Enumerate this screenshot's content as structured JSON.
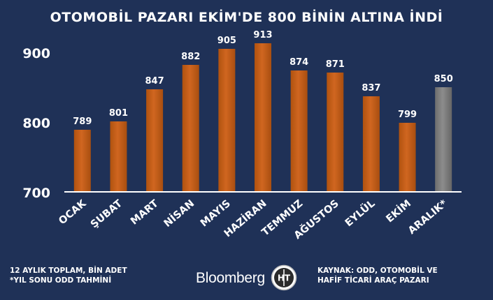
{
  "chart_data": {
    "type": "bar",
    "title": "OTOMOBİL PAZARI EKİM'DE 800 BİNİN ALTINA İNDİ",
    "categories": [
      "OCAK",
      "ŞUBAT",
      "MART",
      "NİSAN",
      "MAYIS",
      "HAZİRAN",
      "TEMMUZ",
      "AĞUSTOS",
      "EYLÜL",
      "EKİM",
      "ARALIK*"
    ],
    "values": [
      789,
      801,
      847,
      882,
      905,
      913,
      874,
      871,
      837,
      799,
      850
    ],
    "value_labels": [
      "789",
      "801",
      "847",
      "882",
      "905",
      "913",
      "874",
      "871",
      "837",
      "799",
      "850"
    ],
    "estimate_flags": [
      false,
      false,
      false,
      false,
      false,
      false,
      false,
      false,
      false,
      false,
      true
    ],
    "ylim": [
      700,
      920
    ],
    "yticks": [
      700,
      800,
      900
    ],
    "ytick_labels": [
      "700",
      "800",
      "900"
    ],
    "xlabel": "",
    "ylabel": "",
    "colors": {
      "bar": "#d06620",
      "bar_estimate": "#8c8c8c",
      "axis": "#ffffff",
      "background": "#1f3157"
    }
  },
  "footer": {
    "note_line1": "12 AYLIK TOPLAM, BİN ADET",
    "note_line2": "*YIL SONU ODD TAHMİNİ",
    "brand": "Bloomberg",
    "logo_letters": "HT",
    "source_line1": "KAYNAK: ODD, OTOMOBİL VE",
    "source_line2": "HAFİF TİCARİ ARAÇ PAZARI"
  }
}
